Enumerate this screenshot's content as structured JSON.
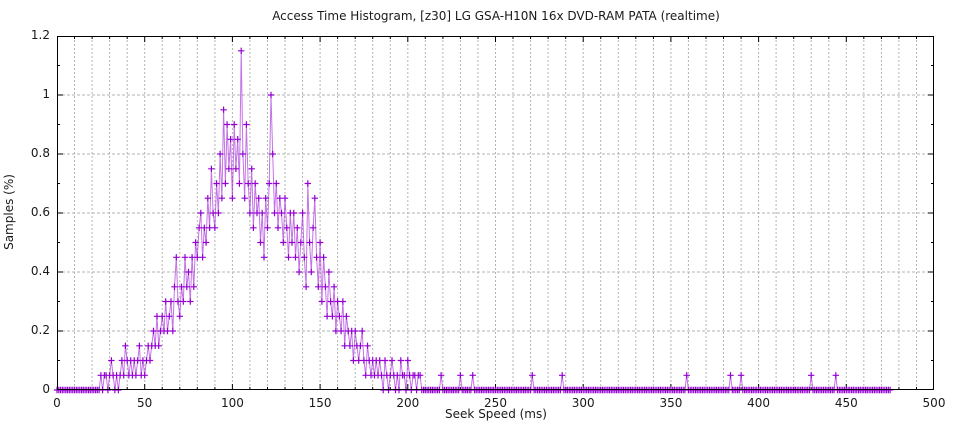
{
  "chart_data": {
    "type": "line",
    "title": "Access Time Histogram, [z30] LG GSA-H10N 16x DVD-RAM PATA (realtime)",
    "xlabel": "Seek Speed (ms)",
    "ylabel": "Samples (%)",
    "xlim": [
      0,
      500
    ],
    "ylim": [
      0,
      1.2
    ],
    "x_ticks": [
      0,
      50,
      100,
      150,
      200,
      250,
      300,
      350,
      400,
      450,
      500
    ],
    "x_tick_labels": [
      "0",
      "50",
      "100",
      "150",
      "200",
      "250",
      "300",
      "350",
      "400",
      "450",
      "500"
    ],
    "x_minor_step": 10,
    "y_ticks": [
      0,
      0.2,
      0.4,
      0.6,
      0.8,
      1,
      1.2
    ],
    "y_tick_labels": [
      "0",
      "0.2",
      "0.4",
      "0.6",
      "0.8",
      "1",
      "1.2"
    ],
    "y_minor_step": 0.1,
    "grid": true,
    "legend": "none",
    "marker": "plus",
    "line_color": "#9400d3",
    "grid_color": "#b3b3b3",
    "border_color": "#000000",
    "x_start": 0,
    "x_step": 1,
    "values": [
      0,
      0,
      0,
      0,
      0,
      0,
      0,
      0,
      0,
      0,
      0,
      0,
      0,
      0,
      0,
      0,
      0,
      0,
      0,
      0,
      0,
      0,
      0,
      0,
      0,
      0.05,
      0,
      0.05,
      0.05,
      0,
      0.05,
      0.1,
      0.05,
      0,
      0.05,
      0,
      0.05,
      0.1,
      0.05,
      0.15,
      0.1,
      0.05,
      0.1,
      0.05,
      0.1,
      0.05,
      0.1,
      0.15,
      0.05,
      0.1,
      0.05,
      0.1,
      0.15,
      0.1,
      0.15,
      0.2,
      0.15,
      0.25,
      0.15,
      0.2,
      0.25,
      0.2,
      0.3,
      0.2,
      0.25,
      0.3,
      0.2,
      0.35,
      0.45,
      0.3,
      0.25,
      0.35,
      0.3,
      0.45,
      0.35,
      0.4,
      0.3,
      0.45,
      0.35,
      0.5,
      0.45,
      0.55,
      0.6,
      0.45,
      0.55,
      0.5,
      0.65,
      0.55,
      0.75,
      0.6,
      0.55,
      0.7,
      0.6,
      0.8,
      0.65,
      0.95,
      0.7,
      0.9,
      0.75,
      0.85,
      0.65,
      0.9,
      0.75,
      0.85,
      0.7,
      1.15,
      0.8,
      0.65,
      0.9,
      0.7,
      0.6,
      0.75,
      0.55,
      0.7,
      0.6,
      0.65,
      0.5,
      0.6,
      0.45,
      0.65,
      0.55,
      0.7,
      1,
      0.8,
      0.6,
      0.7,
      0.55,
      0.65,
      0.6,
      0.5,
      0.65,
      0.55,
      0.45,
      0.6,
      0.5,
      0.6,
      0.45,
      0.55,
      0.4,
      0.5,
      0.6,
      0.45,
      0.35,
      0.7,
      0.5,
      0.4,
      0.55,
      0.65,
      0.45,
      0.35,
      0.5,
      0.3,
      0.45,
      0.35,
      0.25,
      0.4,
      0.3,
      0.25,
      0.35,
      0.2,
      0.3,
      0.25,
      0.2,
      0.3,
      0.15,
      0.25,
      0.2,
      0.15,
      0.2,
      0.1,
      0.2,
      0.15,
      0.1,
      0.15,
      0.2,
      0.1,
      0.05,
      0.15,
      0.1,
      0.05,
      0.1,
      0.05,
      0.1,
      0.05,
      0.1,
      0.05,
      0,
      0.1,
      0.05,
      0,
      0.05,
      0.1,
      0.05,
      0,
      0.05,
      0,
      0.1,
      0.05,
      0.05,
      0,
      0.1,
      0.05,
      0,
      0.05,
      0.05,
      0,
      0.05,
      0.05,
      0,
      0,
      0,
      0,
      0,
      0,
      0,
      0,
      0,
      0,
      0,
      0.05,
      0,
      0,
      0,
      0,
      0,
      0,
      0,
      0,
      0,
      0,
      0.05,
      0,
      0,
      0,
      0,
      0,
      0,
      0.05,
      0,
      0,
      0,
      0,
      0,
      0,
      0,
      0,
      0,
      0,
      0,
      0,
      0,
      0,
      0,
      0,
      0,
      0,
      0,
      0,
      0,
      0,
      0,
      0,
      0,
      0,
      0,
      0,
      0,
      0,
      0,
      0,
      0,
      0.05,
      0,
      0,
      0,
      0,
      0,
      0,
      0,
      0,
      0,
      0,
      0,
      0,
      0,
      0,
      0,
      0,
      0.05,
      0,
      0,
      0,
      0,
      0,
      0,
      0,
      0,
      0,
      0,
      0,
      0,
      0,
      0,
      0,
      0,
      0,
      0,
      0,
      0,
      0,
      0,
      0,
      0,
      0,
      0,
      0,
      0,
      0,
      0,
      0,
      0,
      0,
      0,
      0,
      0,
      0,
      0,
      0,
      0,
      0,
      0,
      0,
      0,
      0,
      0,
      0,
      0,
      0,
      0,
      0,
      0,
      0,
      0,
      0,
      0,
      0,
      0,
      0,
      0,
      0,
      0,
      0,
      0,
      0,
      0,
      0,
      0,
      0,
      0,
      0.05,
      0,
      0,
      0,
      0,
      0,
      0,
      0,
      0,
      0,
      0,
      0,
      0,
      0,
      0,
      0,
      0,
      0,
      0,
      0,
      0,
      0,
      0,
      0,
      0,
      0.05,
      0,
      0,
      0,
      0,
      0,
      0.05,
      0,
      0,
      0,
      0,
      0,
      0,
      0,
      0,
      0,
      0,
      0,
      0,
      0,
      0,
      0,
      0,
      0,
      0,
      0,
      0,
      0,
      0,
      0,
      0,
      0,
      0,
      0,
      0,
      0,
      0,
      0,
      0,
      0,
      0,
      0,
      0,
      0,
      0,
      0,
      0.05,
      0,
      0,
      0,
      0,
      0,
      0,
      0,
      0,
      0,
      0,
      0,
      0,
      0,
      0.05,
      0,
      0,
      0,
      0,
      0,
      0,
      0,
      0,
      0,
      0,
      0,
      0,
      0,
      0,
      0,
      0,
      0,
      0,
      0,
      0,
      0,
      0,
      0,
      0,
      0,
      0,
      0,
      0,
      0,
      0,
      0
    ]
  }
}
